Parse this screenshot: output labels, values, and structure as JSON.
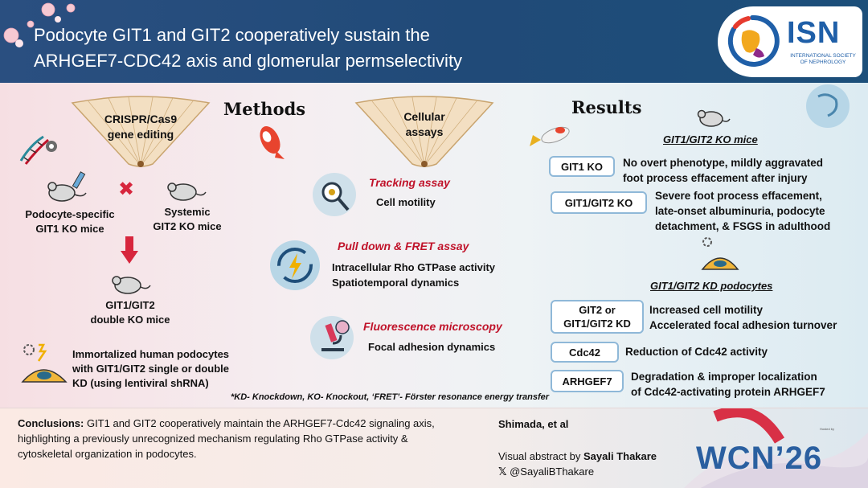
{
  "header": {
    "title_line1": "Podocyte GIT1 and GIT2 cooperatively sustain the",
    "title_line2": "ARHGEF7-CDC42 axis and glomerular permselectivity",
    "logo_text": "ISN",
    "logo_sub_line1": "INTERNATIONAL SOCIETY",
    "logo_sub_line2": "OF NEPHROLOGY"
  },
  "methods": {
    "heading": "Methods",
    "fan_label_line1": "CRISPR/Cas9",
    "fan_label_line2": "gene editing",
    "podocyte_ko_line1": "Podocyte-specific",
    "podocyte_ko_line2": "GIT1 KO mice",
    "systemic_ko_line1": "Systemic",
    "systemic_ko_line2": "GIT2 KO mice",
    "double_ko_line1": "GIT1/GIT2",
    "double_ko_line2": "double KO mice",
    "cells_line1": "Immortalized human podocytes",
    "cells_line2": "with GIT1/GIT2 single or double",
    "cells_line3": "KD (using lentiviral shRNA)"
  },
  "assays": {
    "fan_label_line1": "Cellular",
    "fan_label_line2": "assays",
    "items": [
      {
        "title": "Tracking assay",
        "desc_line1": "Cell motility",
        "desc_line2": ""
      },
      {
        "title": "Pull down & FRET assay",
        "desc_line1": "Intracellular Rho GTPase activity",
        "desc_line2": "Spatiotemporal dynamics"
      },
      {
        "title": "Fluorescence microscopy",
        "desc_line1": "Focal adhesion dynamics",
        "desc_line2": ""
      }
    ]
  },
  "results": {
    "heading": "Results",
    "mice_heading": "GIT1/GIT2 KO mice",
    "podocyte_heading": "GIT1/GIT2 KD podocytes",
    "rows": [
      {
        "box_line1": "GIT1 KO",
        "box_line2": "",
        "text_line1": "No overt phenotype, mildly aggravated",
        "text_line2": "foot process effacement after injury",
        "text_line3": ""
      },
      {
        "box_line1": "GIT1/GIT2 KO",
        "box_line2": "",
        "text_line1": "Severe foot process effacement,",
        "text_line2": "late-onset albuminuria, podocyte",
        "text_line3": "detachment, & FSGS in adulthood"
      },
      {
        "box_line1": "GIT2 or",
        "box_line2": "GIT1/GIT2 KD",
        "text_line1": "Increased cell motility",
        "text_line2": "Accelerated focal adhesion turnover",
        "text_line3": ""
      },
      {
        "box_line1": "Cdc42",
        "box_line2": "",
        "text_line1": "Reduction of Cdc42 activity",
        "text_line2": "",
        "text_line3": ""
      },
      {
        "box_line1": "ARHGEF7",
        "box_line2": "",
        "text_line1": "Degradation & improper localization",
        "text_line2": "of Cdc42-activating protein ARHGEF7",
        "text_line3": ""
      }
    ]
  },
  "footnote": "*KD- Knockdown, KO- Knockout, ‘FRET’- Förster resonance energy transfer",
  "footer": {
    "conclusion_label": "Conclusions:",
    "conclusion_line1": " GIT1 and GIT2 cooperatively maintain the ARHGEF7-Cdc42 signaling axis,",
    "conclusion_line2": "highlighting a previously unrecognized mechanism regulating Rho GTPase activity &",
    "conclusion_line3": "cytoskeletal organization in podocytes.",
    "author": "Shimada, et al",
    "va_prefix": "Visual abstract by ",
    "va_name": "Sayali Thakare",
    "handle": "@SayaliBThakare",
    "congress": "WCN’26",
    "hosted_by": "Hosted by"
  },
  "colors": {
    "header_bg": "#204a78",
    "accent_red": "#c0132a",
    "box_border": "#8fb8d8",
    "isn_blue": "#1f5fa8"
  }
}
